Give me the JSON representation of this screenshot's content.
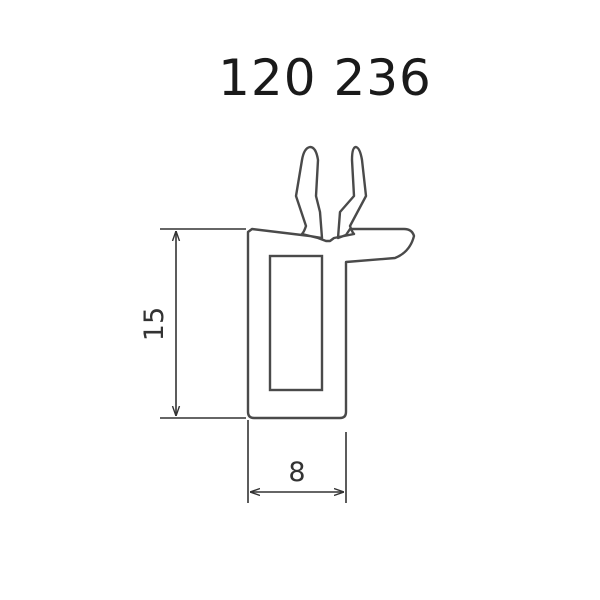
{
  "drawing": {
    "part_number": "120 236",
    "dimensions": {
      "height_label": "15",
      "width_label": "8"
    },
    "colors": {
      "profile_stroke": "#4a4a4a",
      "profile_fill": "#ffffff",
      "dimension_line": "#333333",
      "text": "#1a1a1a"
    }
  }
}
